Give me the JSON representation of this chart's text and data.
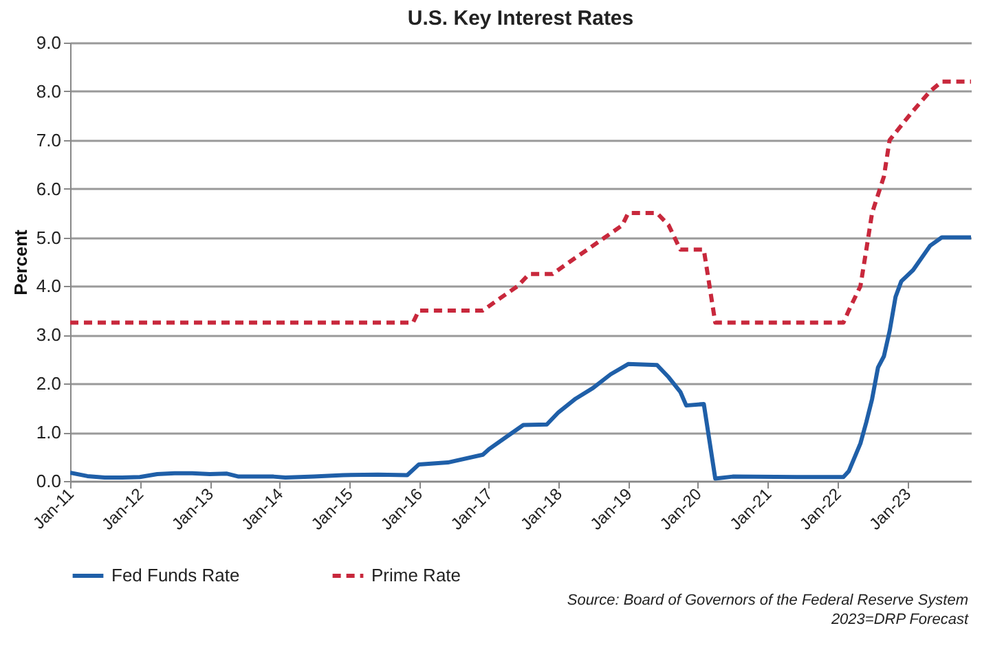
{
  "chart_data": {
    "type": "line",
    "title": "U.S. Key Interest Rates",
    "ylabel": "Percent",
    "annotations": [
      "Source: Board of Governors of the Federal Reserve System",
      "2023=DRP Forecast"
    ],
    "xlim": [
      "2011-01",
      "2023-12"
    ],
    "xticks": [
      {
        "value": "2011-01",
        "label": "Jan-11"
      },
      {
        "value": "2012-01",
        "label": "Jan-12"
      },
      {
        "value": "2013-01",
        "label": "Jan-13"
      },
      {
        "value": "2014-01",
        "label": "Jan-14"
      },
      {
        "value": "2015-01",
        "label": "Jan-15"
      },
      {
        "value": "2016-01",
        "label": "Jan-16"
      },
      {
        "value": "2017-01",
        "label": "Jan-17"
      },
      {
        "value": "2018-01",
        "label": "Jan-18"
      },
      {
        "value": "2019-01",
        "label": "Jan-19"
      },
      {
        "value": "2020-01",
        "label": "Jan-20"
      },
      {
        "value": "2021-01",
        "label": "Jan-21"
      },
      {
        "value": "2022-01",
        "label": "Jan-22"
      },
      {
        "value": "2023-01",
        "label": "Jan-23"
      }
    ],
    "ylim": [
      0,
      9
    ],
    "yticks": [
      {
        "value": 0,
        "label": "0.0"
      },
      {
        "value": 1,
        "label": "1.0"
      },
      {
        "value": 2,
        "label": "2.0"
      },
      {
        "value": 3,
        "label": "3.0"
      },
      {
        "value": 4,
        "label": "4.0"
      },
      {
        "value": 5,
        "label": "5.0"
      },
      {
        "value": 6,
        "label": "6.0"
      },
      {
        "value": 7,
        "label": "7.0"
      },
      {
        "value": 8,
        "label": "8.0"
      },
      {
        "value": 9,
        "label": "9.0"
      }
    ],
    "grid": "y",
    "legend": "bottom",
    "series": [
      {
        "name": "Fed Funds Rate",
        "color": "#1f5fa8",
        "line_style": "solid",
        "x": [
          "2011-01",
          "2011-04",
          "2011-07",
          "2011-10",
          "2012-01",
          "2012-04",
          "2012-07",
          "2012-10",
          "2013-01",
          "2013-04",
          "2013-06",
          "2013-12",
          "2014-02",
          "2014-07",
          "2014-12",
          "2015-06",
          "2015-11",
          "2016-01",
          "2016-06",
          "2016-12",
          "2017-01",
          "2017-04",
          "2017-07",
          "2017-11",
          "2018-01",
          "2018-04",
          "2018-07",
          "2018-10",
          "2019-01",
          "2019-06",
          "2019-08",
          "2019-10",
          "2019-11",
          "2020-02",
          "2020-04",
          "2020-07",
          "2021-06",
          "2022-02",
          "2022-03",
          "2022-05",
          "2022-06",
          "2022-07",
          "2022-08",
          "2022-09",
          "2022-10",
          "2022-11",
          "2022-12",
          "2023-02",
          "2023-05",
          "2023-07",
          "2023-12"
        ],
        "values": [
          0.17,
          0.1,
          0.07,
          0.07,
          0.08,
          0.14,
          0.16,
          0.16,
          0.14,
          0.15,
          0.09,
          0.09,
          0.07,
          0.09,
          0.12,
          0.13,
          0.12,
          0.34,
          0.38,
          0.54,
          0.65,
          0.9,
          1.15,
          1.16,
          1.41,
          1.69,
          1.91,
          2.19,
          2.4,
          2.38,
          2.13,
          1.83,
          1.55,
          1.58,
          0.05,
          0.09,
          0.08,
          0.08,
          0.2,
          0.77,
          1.21,
          1.68,
          2.33,
          2.56,
          3.08,
          3.78,
          4.1,
          4.33,
          4.83,
          5.0,
          5.0
        ]
      },
      {
        "name": "Prime Rate",
        "color": "#c8283c",
        "line_style": "dashed",
        "x": [
          "2011-01",
          "2015-12",
          "2016-01",
          "2016-12",
          "2017-03",
          "2017-06",
          "2017-08",
          "2017-12",
          "2018-03",
          "2018-06",
          "2018-09",
          "2018-12",
          "2019-01",
          "2019-06",
          "2019-08",
          "2019-10",
          "2020-02",
          "2020-04",
          "2022-02",
          "2022-03",
          "2022-05",
          "2022-06",
          "2022-07",
          "2022-09",
          "2022-10",
          "2022-12",
          "2023-02",
          "2023-05",
          "2023-07",
          "2023-12"
        ],
        "values": [
          3.25,
          3.25,
          3.5,
          3.5,
          3.75,
          4.0,
          4.25,
          4.25,
          4.5,
          4.75,
          5.0,
          5.25,
          5.5,
          5.5,
          5.25,
          4.75,
          4.75,
          3.25,
          3.25,
          3.5,
          4.0,
          4.75,
          5.5,
          6.25,
          7.0,
          7.3,
          7.6,
          8.0,
          8.2,
          8.2
        ]
      }
    ]
  }
}
